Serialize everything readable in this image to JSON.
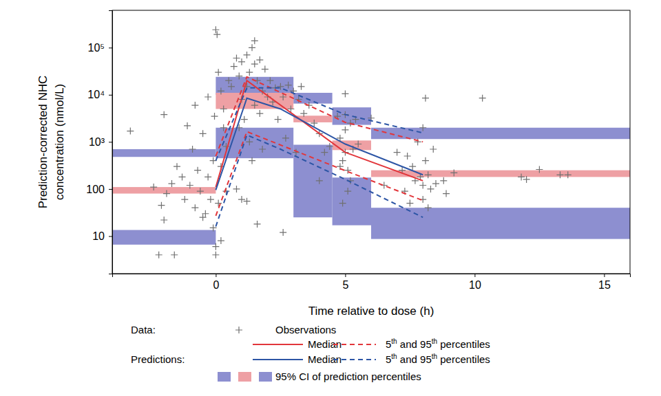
{
  "chart_data": {
    "type": "scatter",
    "x_label": "Time relative to dose (h)",
    "y_label": [
      "Prediction-corrected NHC",
      "concentration (nmol/L)"
    ],
    "log": "y",
    "grid": false,
    "legend": "bottom",
    "legend_titles": [
      "Data:",
      "Predictions:"
    ],
    "xlim": [
      -4,
      16
    ],
    "xticks": [
      0,
      5,
      10,
      15
    ],
    "ylim": [
      1.6,
      620000
    ],
    "yticks": [
      10,
      100,
      {
        "value": 1000,
        "label": "10³"
      },
      {
        "value": 10000,
        "label": "10⁴"
      },
      {
        "value": 100000,
        "label": "10⁵"
      }
    ],
    "series": [
      {
        "name": "Observations",
        "type": "scatter",
        "marker": "plus",
        "color": "#707070",
        "x": [
          -3.3,
          -2.2,
          -1.6,
          -2.0,
          -2.1,
          -1.9,
          -1.7,
          -1.5,
          -1.2,
          -1.0,
          -0.9,
          -0.8,
          -0.7,
          -0.6,
          -0.5,
          -0.4,
          -0.3,
          -0.2,
          -0.1,
          -0.1,
          0.0,
          0.0,
          -0.05,
          -1.1,
          -2.0,
          -0.8,
          -0.5,
          -1.3,
          -2.4,
          -0.3,
          0.0,
          0.05,
          0.1,
          0.2,
          0.3,
          0.2,
          0.4,
          0.1,
          0.3,
          0.5,
          0.4,
          0.2,
          0.6,
          0.7,
          0.8,
          0.9,
          1.0,
          1.0,
          1.1,
          1.2,
          1.2,
          1.3,
          1.3,
          1.4,
          1.5,
          1.5,
          1.5,
          1.6,
          1.6,
          1.7,
          1.8,
          1.8,
          1.9,
          2.0,
          1.0,
          0.8,
          1.2,
          1.4,
          0.9,
          1.7,
          2.1,
          2.2,
          2.3,
          2.4,
          2.5,
          2.6,
          2.6,
          2.8,
          2.9,
          3.0,
          3.2,
          3.3,
          3.4,
          2.7,
          3.1,
          3.6,
          3.8,
          4.0,
          4.2,
          4.4,
          4.0,
          4.7,
          4.8,
          4.9,
          5.0,
          5.0,
          5.0,
          5.1,
          5.1,
          5.2,
          5.3,
          5.4,
          4.9,
          5.0,
          5.2,
          5.5,
          4.8,
          6.0,
          6.5,
          7.0,
          7.2,
          7.3,
          7.5,
          7.6,
          7.8,
          7.9,
          8.0,
          8.0,
          8.1,
          8.1,
          8.2,
          8.2,
          8.3,
          8.4,
          7.7,
          8.0,
          8.5,
          7.4,
          9.2,
          8.8,
          8.9,
          10.3,
          11.8,
          12.0,
          12.5,
          13.3,
          13.6
        ],
        "values": [
          1700,
          4,
          4,
          22,
          45,
          80,
          130,
          300,
          60,
          120,
          700,
          40,
          250,
          90,
          1500,
          30,
          180,
          60,
          400,
          15,
          6,
          4,
          3500,
          2200,
          3800,
          6000,
          25,
          180,
          110,
          9000,
          240000,
          190000,
          30000,
          12000,
          2000,
          300,
          800,
          50,
          5000,
          20000,
          90,
          8,
          15000,
          40000,
          60000,
          25000,
          50000,
          8000,
          3000,
          70000,
          15000,
          30000,
          1000,
          100000,
          140000,
          45000,
          6000,
          18,
          20000,
          55000,
          12000,
          700,
          35000,
          9000,
          60,
          100,
          55,
          400,
          2000,
          4000,
          20000,
          7000,
          14000,
          3000,
          15000,
          12,
          9000,
          16000,
          5000,
          12000,
          8000,
          15000,
          4000,
          1200,
          600,
          6000,
          2500,
          1500,
          600,
          800,
          150,
          3500,
          1200,
          400,
          10500,
          1800,
          600,
          250,
          90,
          2500,
          700,
          3000,
          50,
          3800,
          150,
          900,
          300,
          3200,
          120,
          600,
          250,
          90,
          50,
          300,
          1000,
          180,
          120,
          60,
          8500,
          400,
          40,
          200,
          100,
          700,
          150,
          2000,
          130,
          500,
          220,
          150,
          80,
          8500,
          180,
          160,
          260,
          200,
          200
        ]
      },
      {
        "name": "Median",
        "type": "line",
        "line_style": "solid",
        "color": "#e2363b",
        "x": [
          0,
          1.2,
          5,
          8
        ],
        "values": [
          110,
          20000,
          600,
          150
        ]
      },
      {
        "name": "5th and 95th percentiles",
        "type": "line",
        "line_style": "dashed",
        "color": "#e2363b",
        "x": [
          0,
          1.2,
          5,
          8
        ],
        "lower": [
          27,
          1650,
          245,
          57
        ],
        "upper": [
          500,
          24000,
          2600,
          1000
        ]
      },
      {
        "name": "Median",
        "type": "line",
        "line_style": "solid",
        "color": "#2c55a5",
        "x": [
          0,
          1.2,
          2.5,
          5,
          8
        ],
        "values": [
          95,
          8500,
          5000,
          900,
          200
        ]
      },
      {
        "name": "5th and 95th percentiles",
        "type": "line",
        "line_style": "dashed",
        "color": "#2c55a5",
        "x": [
          0,
          1.2,
          2.5,
          5,
          8
        ],
        "lower": [
          16,
          1400,
          700,
          160,
          25
        ],
        "upper": [
          400,
          14000,
          14000,
          3800,
          1550
        ]
      }
    ],
    "ci_bands": {
      "name": "95% CI of prediction percentiles",
      "bins": [
        -4,
        0,
        3,
        4.5,
        6,
        16
      ],
      "bands": [
        {
          "color": "#8d8fd0",
          "low": [
            480,
            10000,
            6500,
            2300,
            1150
          ],
          "high": [
            700,
            24000,
            11000,
            5400,
            2000
          ]
        },
        {
          "color": "#eea0a4",
          "low": [
            80,
            5000,
            2600,
            670,
            180
          ],
          "high": [
            110,
            11000,
            3600,
            1070,
            250
          ]
        },
        {
          "color": "#8d8fd0",
          "low": [
            6.6,
            450,
            25,
            17,
            8.7
          ],
          "high": [
            13.5,
            2000,
            870,
            175,
            40
          ]
        }
      ]
    }
  }
}
